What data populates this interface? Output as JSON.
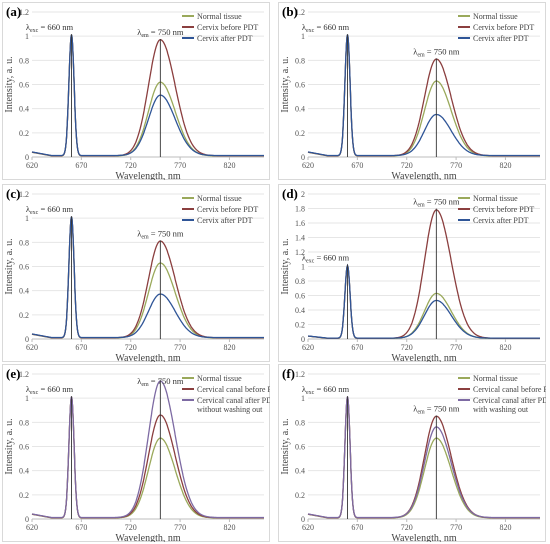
{
  "colors": {
    "normal": "#9aa95b",
    "before": "#8b3f3f",
    "after": "#2f5597",
    "after_f": "#7d6aa3",
    "marker": "#333333"
  },
  "chart_data": [
    {
      "panel": "(a)",
      "type": "line",
      "xlabel": "Wavelength, nm",
      "ylabel": "Intensity, a. u.",
      "xlim": [
        620,
        855
      ],
      "ylim": [
        0,
        1.2
      ],
      "xticks": [
        "620",
        "670",
        "720",
        "770",
        "820"
      ],
      "yticks": [
        "0",
        "0.2",
        "0.4",
        "0.6",
        "0.8",
        "1",
        "1.2"
      ],
      "ann_exc": "λexc = 660 nm",
      "ann_em": "λem = 750 nm",
      "series": [
        {
          "name": "Normal tissue",
          "color_key": "normal",
          "exc_peak": 1.0,
          "em_peak": 0.61
        },
        {
          "name": "Cervix before PDT",
          "color_key": "before",
          "exc_peak": 1.0,
          "em_peak": 0.96
        },
        {
          "name": "Cervix after PDT",
          "color_key": "after",
          "exc_peak": 1.0,
          "em_peak": 0.5
        }
      ]
    },
    {
      "panel": "(b)",
      "type": "line",
      "xlabel": "Wavelength, nm",
      "ylabel": "Intensity, a. u.",
      "xlim": [
        620,
        855
      ],
      "ylim": [
        0,
        1.2
      ],
      "xticks": [
        "620",
        "670",
        "720",
        "770",
        "820"
      ],
      "yticks": [
        "0",
        "0.2",
        "0.4",
        "0.6",
        "0.8",
        "1",
        "1.2"
      ],
      "ann_exc": "λexc = 660 nm",
      "ann_em": "λem = 750 nm",
      "series": [
        {
          "name": "Normal tissue",
          "color_key": "normal",
          "exc_peak": 1.0,
          "em_peak": 0.62
        },
        {
          "name": "Cervix before PDT",
          "color_key": "before",
          "exc_peak": 1.0,
          "em_peak": 0.8
        },
        {
          "name": "Cervix after PDT",
          "color_key": "after",
          "exc_peak": 1.0,
          "em_peak": 0.34
        }
      ]
    },
    {
      "panel": "(c)",
      "type": "line",
      "xlabel": "Wavelength, nm",
      "ylabel": "Intensity, a. u.",
      "xlim": [
        620,
        855
      ],
      "ylim": [
        0,
        1.2
      ],
      "xticks": [
        "620",
        "670",
        "720",
        "770",
        "820"
      ],
      "yticks": [
        "0",
        "0.2",
        "0.4",
        "0.6",
        "0.8",
        "1",
        "1.2"
      ],
      "ann_exc": "λexc = 660 nm",
      "ann_em": "λem = 750 nm",
      "series": [
        {
          "name": "Normal tissue",
          "color_key": "normal",
          "exc_peak": 1.0,
          "em_peak": 0.62
        },
        {
          "name": "Cervix before PDT",
          "color_key": "before",
          "exc_peak": 1.0,
          "em_peak": 0.8
        },
        {
          "name": "Cervix after PDT",
          "color_key": "after",
          "exc_peak": 1.0,
          "em_peak": 0.36
        }
      ]
    },
    {
      "panel": "(d)",
      "type": "line",
      "xlabel": "Wavelength, nm",
      "ylabel": "Intensity, a. u.",
      "xlim": [
        620,
        855
      ],
      "ylim": [
        0,
        2.0
      ],
      "xticks": [
        "620",
        "670",
        "720",
        "770",
        "820"
      ],
      "yticks": [
        "0",
        "0.2",
        "0.4",
        "0.6",
        "0.8",
        "1",
        "1.2",
        "1.4",
        "1.6",
        "1.8",
        "2"
      ],
      "ann_exc": "λexc = 660 nm",
      "ann_em": "λem = 750 nm",
      "series": [
        {
          "name": "Normal tissue",
          "color_key": "normal",
          "exc_peak": 1.0,
          "em_peak": 0.62
        },
        {
          "name": "Cervix before PDT",
          "color_key": "before",
          "exc_peak": 1.0,
          "em_peak": 1.77
        },
        {
          "name": "Cervix after PDT",
          "color_key": "after",
          "exc_peak": 1.0,
          "em_peak": 0.52
        }
      ]
    },
    {
      "panel": "(e)",
      "type": "line",
      "xlabel": "Wavelength, nm",
      "ylabel": "Intensity, a. u.",
      "xlim": [
        620,
        855
      ],
      "ylim": [
        0,
        1.2
      ],
      "xticks": [
        "620",
        "670",
        "720",
        "770",
        "820"
      ],
      "yticks": [
        "0",
        "0.2",
        "0.4",
        "0.6",
        "0.8",
        "1",
        "1.2"
      ],
      "ann_exc": "λexc = 660 nm",
      "ann_em": "λem = 750 nm",
      "series": [
        {
          "name": "Normal tissue",
          "color_key": "normal",
          "exc_peak": 1.0,
          "em_peak": 0.66
        },
        {
          "name": "Cervical canal before PDT",
          "color_key": "before",
          "exc_peak": 1.0,
          "em_peak": 0.85
        },
        {
          "name": "Cervical canal after PDT without washing out",
          "legend_lines": [
            "Cervical canal after PDT",
            "without washing out"
          ],
          "color_key": "after_f",
          "exc_peak": 1.0,
          "em_peak": 1.13
        }
      ]
    },
    {
      "panel": "(f)",
      "type": "line",
      "xlabel": "Wavelength, nm",
      "ylabel": "Intensity, a. u.",
      "xlim": [
        620,
        855
      ],
      "ylim": [
        0,
        1.2
      ],
      "xticks": [
        "620",
        "670",
        "720",
        "770",
        "820"
      ],
      "yticks": [
        "0",
        "0.2",
        "0.4",
        "0.6",
        "0.8",
        "1",
        "1.2"
      ],
      "ann_exc": "λexc = 660 nm",
      "ann_em": "λem = 750 nm",
      "series": [
        {
          "name": "Normal tissue",
          "color_key": "normal",
          "exc_peak": 1.0,
          "em_peak": 0.66
        },
        {
          "name": "Cervical canal before PDT",
          "color_key": "before",
          "exc_peak": 1.0,
          "em_peak": 0.84
        },
        {
          "name": "Cervical canal after PDT with washing out",
          "legend_lines": [
            "Cervical canal after PDT",
            "with washing out"
          ],
          "color_key": "after_f",
          "exc_peak": 1.0,
          "em_peak": 0.75
        }
      ]
    }
  ]
}
